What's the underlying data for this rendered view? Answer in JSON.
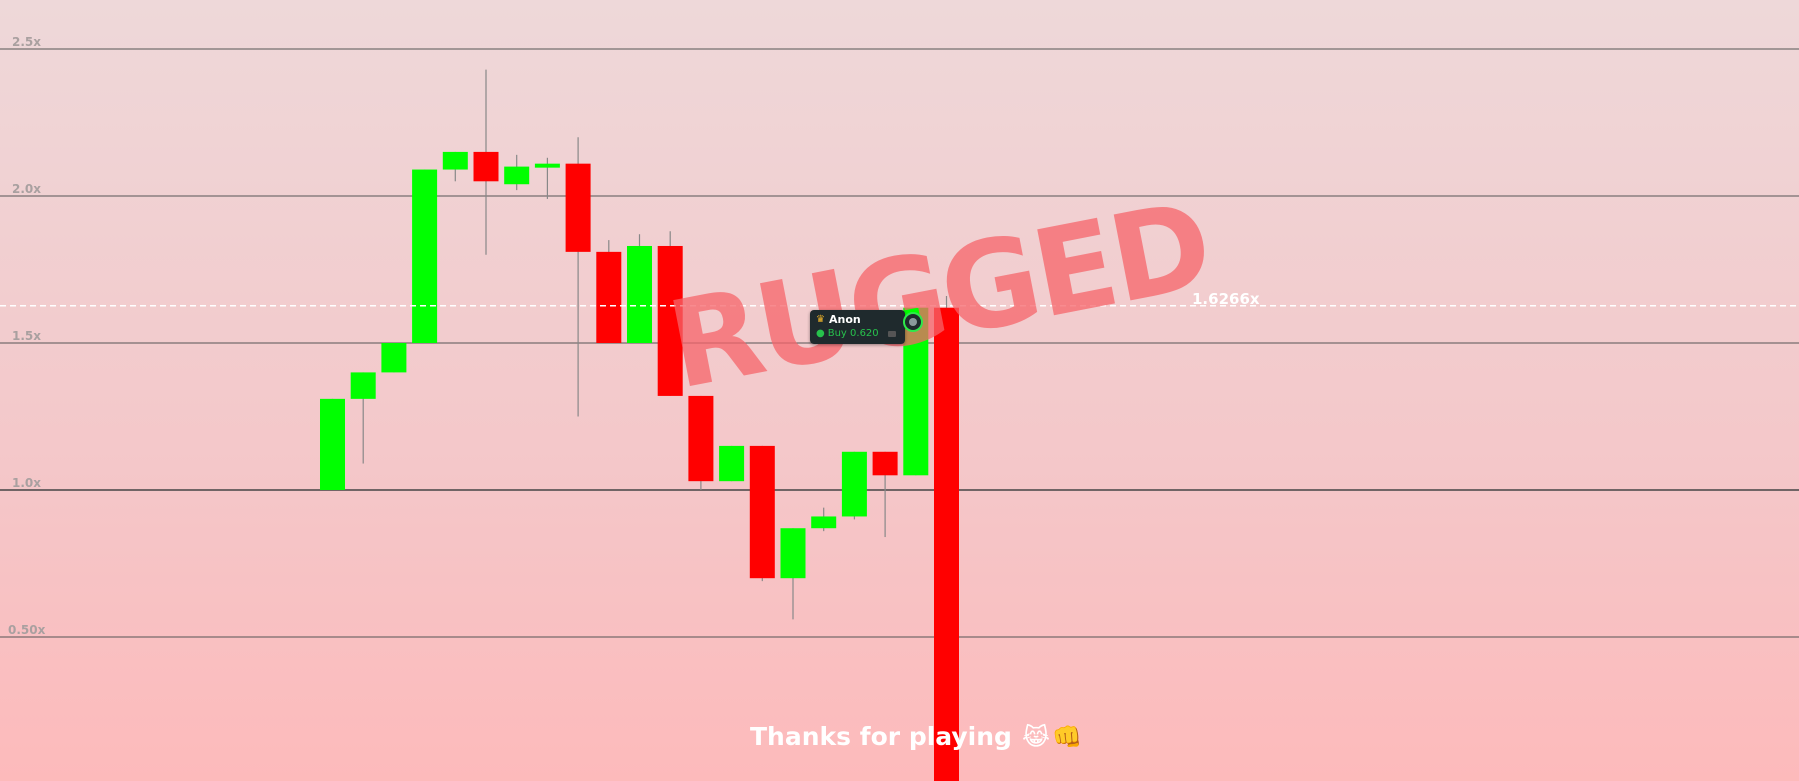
{
  "chart_data": {
    "type": "candlestick",
    "y_ticks": [
      "2.5x",
      "2.0x",
      "1.5x",
      "1.0x",
      "0.50x"
    ],
    "y_tick_values": [
      2.5,
      2.0,
      1.5,
      1.0,
      0.5
    ],
    "current_value": 1.6266,
    "current_label": "1.6266x",
    "colors": {
      "up": "#00ff00",
      "down": "#ff0000"
    },
    "candles": [
      {
        "open": 1.0,
        "close": 1.31,
        "high": 1.31,
        "low": 1.0
      },
      {
        "open": 1.31,
        "close": 1.4,
        "high": 1.4,
        "low": 1.09
      },
      {
        "open": 1.4,
        "close": 1.5,
        "high": 1.5,
        "low": 1.4
      },
      {
        "open": 1.5,
        "close": 2.09,
        "high": 2.09,
        "low": 1.5
      },
      {
        "open": 2.09,
        "close": 2.15,
        "high": 2.15,
        "low": 2.05
      },
      {
        "open": 2.15,
        "close": 2.05,
        "high": 2.43,
        "low": 1.8
      },
      {
        "open": 2.04,
        "close": 2.1,
        "high": 2.14,
        "low": 2.02
      },
      {
        "open": 2.1,
        "close": 2.11,
        "high": 2.13,
        "low": 1.99
      },
      {
        "open": 2.11,
        "close": 1.81,
        "high": 2.2,
        "low": 1.25
      },
      {
        "open": 1.81,
        "close": 1.5,
        "high": 1.85,
        "low": 1.5
      },
      {
        "open": 1.5,
        "close": 1.83,
        "high": 1.87,
        "low": 1.5
      },
      {
        "open": 1.83,
        "close": 1.32,
        "high": 1.88,
        "low": 1.32
      },
      {
        "open": 1.32,
        "close": 1.03,
        "high": 1.32,
        "low": 1.0
      },
      {
        "open": 1.03,
        "close": 1.15,
        "high": 1.15,
        "low": 1.03
      },
      {
        "open": 1.15,
        "close": 0.7,
        "high": 1.15,
        "low": 0.69
      },
      {
        "open": 0.7,
        "close": 0.87,
        "high": 0.87,
        "low": 0.56
      },
      {
        "open": 0.87,
        "close": 0.91,
        "high": 0.94,
        "low": 0.86
      },
      {
        "open": 0.91,
        "close": 1.13,
        "high": 1.13,
        "low": 0.9
      },
      {
        "open": 1.13,
        "close": 1.05,
        "high": 1.13,
        "low": 0.84
      },
      {
        "open": 1.05,
        "close": 1.62,
        "high": 1.62,
        "low": 1.05
      },
      {
        "open": 1.62,
        "close": -0.5,
        "high": 1.66,
        "low": -0.5
      }
    ]
  },
  "overlay": {
    "rugged_text": "RUGGED",
    "thanks_text": "Thanks for playing",
    "thanks_emoji": [
      "😹",
      "👊"
    ]
  },
  "trade_marker": {
    "username": "Anon",
    "action": "Buy 0.620",
    "crown_icon": "crown-icon",
    "buy_icon": "money-bag-icon"
  }
}
